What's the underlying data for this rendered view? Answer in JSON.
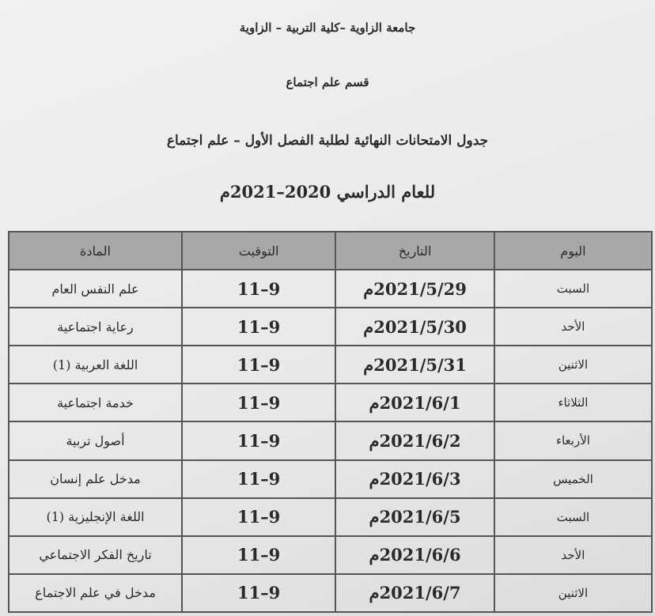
{
  "header": {
    "university": "جامعة الزاوية –كلية التربية – الزاوية",
    "department": "قسم علم اجتماع",
    "title": "جدول الامتحانات النهائية لطلبة الفصل الأول – علم اجتماع",
    "year": "للعام الدراسي 2020–2021م"
  },
  "table": {
    "columns": [
      "اليوم",
      "التاريخ",
      "التوقيت",
      "المادة"
    ],
    "rows": [
      {
        "day": "السبت",
        "date": "2021/5/29م",
        "time": "11–9",
        "subject": "علم النفس العام"
      },
      {
        "day": "الأحد",
        "date": "2021/5/30م",
        "time": "11–9",
        "subject": "رعاية اجتماعية"
      },
      {
        "day": "الاثنين",
        "date": "2021/5/31م",
        "time": "11–9",
        "subject": "اللغة العربية (1)"
      },
      {
        "day": "الثلاثاء",
        "date": "2021/6/1م",
        "time": "11–9",
        "subject": "خدمة اجتماعية"
      },
      {
        "day": "الأربعاء",
        "date": "2021/6/2م",
        "time": "11–9",
        "subject": "أصول تربية"
      },
      {
        "day": "الخميس",
        "date": "2021/6/3م",
        "time": "11–9",
        "subject": "مدخل علم إنسان"
      },
      {
        "day": "السبت",
        "date": "2021/6/5م",
        "time": "11–9",
        "subject": "اللغة الإنجليزية (1)"
      },
      {
        "day": "الأحد",
        "date": "2021/6/6م",
        "time": "11–9",
        "subject": "تاريخ الفكر الاجتماعي"
      },
      {
        "day": "الاثنين",
        "date": "2021/6/7م",
        "time": "11–9",
        "subject": "مدخل في علم الاجتماع"
      }
    ]
  }
}
